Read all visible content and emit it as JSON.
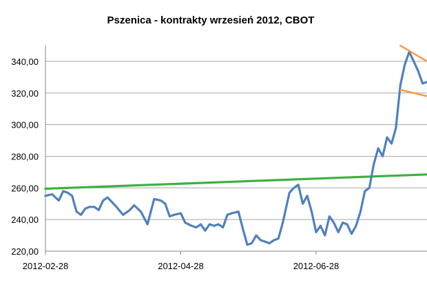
{
  "chart_data": {
    "type": "line",
    "title": "Pszenica - kontrakty wrzesień 2012, CBOT",
    "xlabel": "",
    "ylabel": "",
    "ylim": [
      220,
      350
    ],
    "ytick_values": [
      220,
      240,
      260,
      280,
      300,
      320,
      340
    ],
    "ytick_labels": [
      "220,00",
      "240,00",
      "260,00",
      "280,00",
      "300,00",
      "320,00",
      "340,00"
    ],
    "x_tick_labels": [
      "2012-02-28",
      "2012-04-28",
      "2012-06-28"
    ],
    "x_tick_positions": [
      0,
      61,
      122
    ],
    "gridlines": "horizontal",
    "legend": "none",
    "colors": {
      "price": "#4f81bd",
      "trend": "#3cb043",
      "channel": "#f79646",
      "grid": "#a6a6a6"
    },
    "series": [
      {
        "kind": "price",
        "x": [
          0,
          3,
          6,
          8,
          10,
          12,
          14,
          16,
          18,
          20,
          22,
          24,
          26,
          28,
          30,
          32,
          35,
          38,
          40,
          43,
          46,
          49,
          52,
          54,
          56,
          58,
          61,
          63,
          66,
          68,
          70,
          72,
          74,
          76,
          78,
          80,
          82,
          84,
          87,
          89,
          91,
          93,
          95,
          97,
          99,
          101,
          103,
          105,
          107,
          110,
          112,
          114,
          116,
          118,
          120,
          122,
          124,
          126,
          128,
          130,
          132,
          134,
          136,
          138,
          140,
          142,
          144,
          146,
          148,
          150,
          152,
          154,
          156,
          158,
          160,
          162,
          164,
          166,
          168,
          170,
          172
        ],
        "y": [
          255,
          256,
          252,
          258,
          257,
          255,
          245,
          243,
          247,
          248,
          248,
          246,
          252,
          254,
          251,
          248,
          243,
          246,
          249,
          245,
          237,
          253,
          252,
          250,
          242,
          243,
          244,
          238,
          236,
          235,
          237,
          233,
          237,
          236,
          237,
          235,
          243,
          244,
          245,
          234,
          224,
          225,
          230,
          227,
          226,
          225,
          227,
          228,
          238,
          257,
          260,
          262,
          250,
          255,
          245,
          232,
          236,
          230,
          242,
          238,
          232,
          238,
          237,
          231,
          236,
          245,
          258,
          260,
          275,
          285,
          280,
          292,
          288,
          298,
          325,
          338,
          346,
          340,
          334,
          326,
          327
        ]
      },
      {
        "kind": "trend",
        "x": [
          0,
          172
        ],
        "y": [
          259.5,
          268.5
        ]
      },
      {
        "kind": "channel-upper",
        "x": [
          160,
          172
        ],
        "y": [
          350,
          340
        ]
      },
      {
        "kind": "channel-lower",
        "x": [
          160,
          172
        ],
        "y": [
          322,
          318
        ]
      }
    ]
  }
}
